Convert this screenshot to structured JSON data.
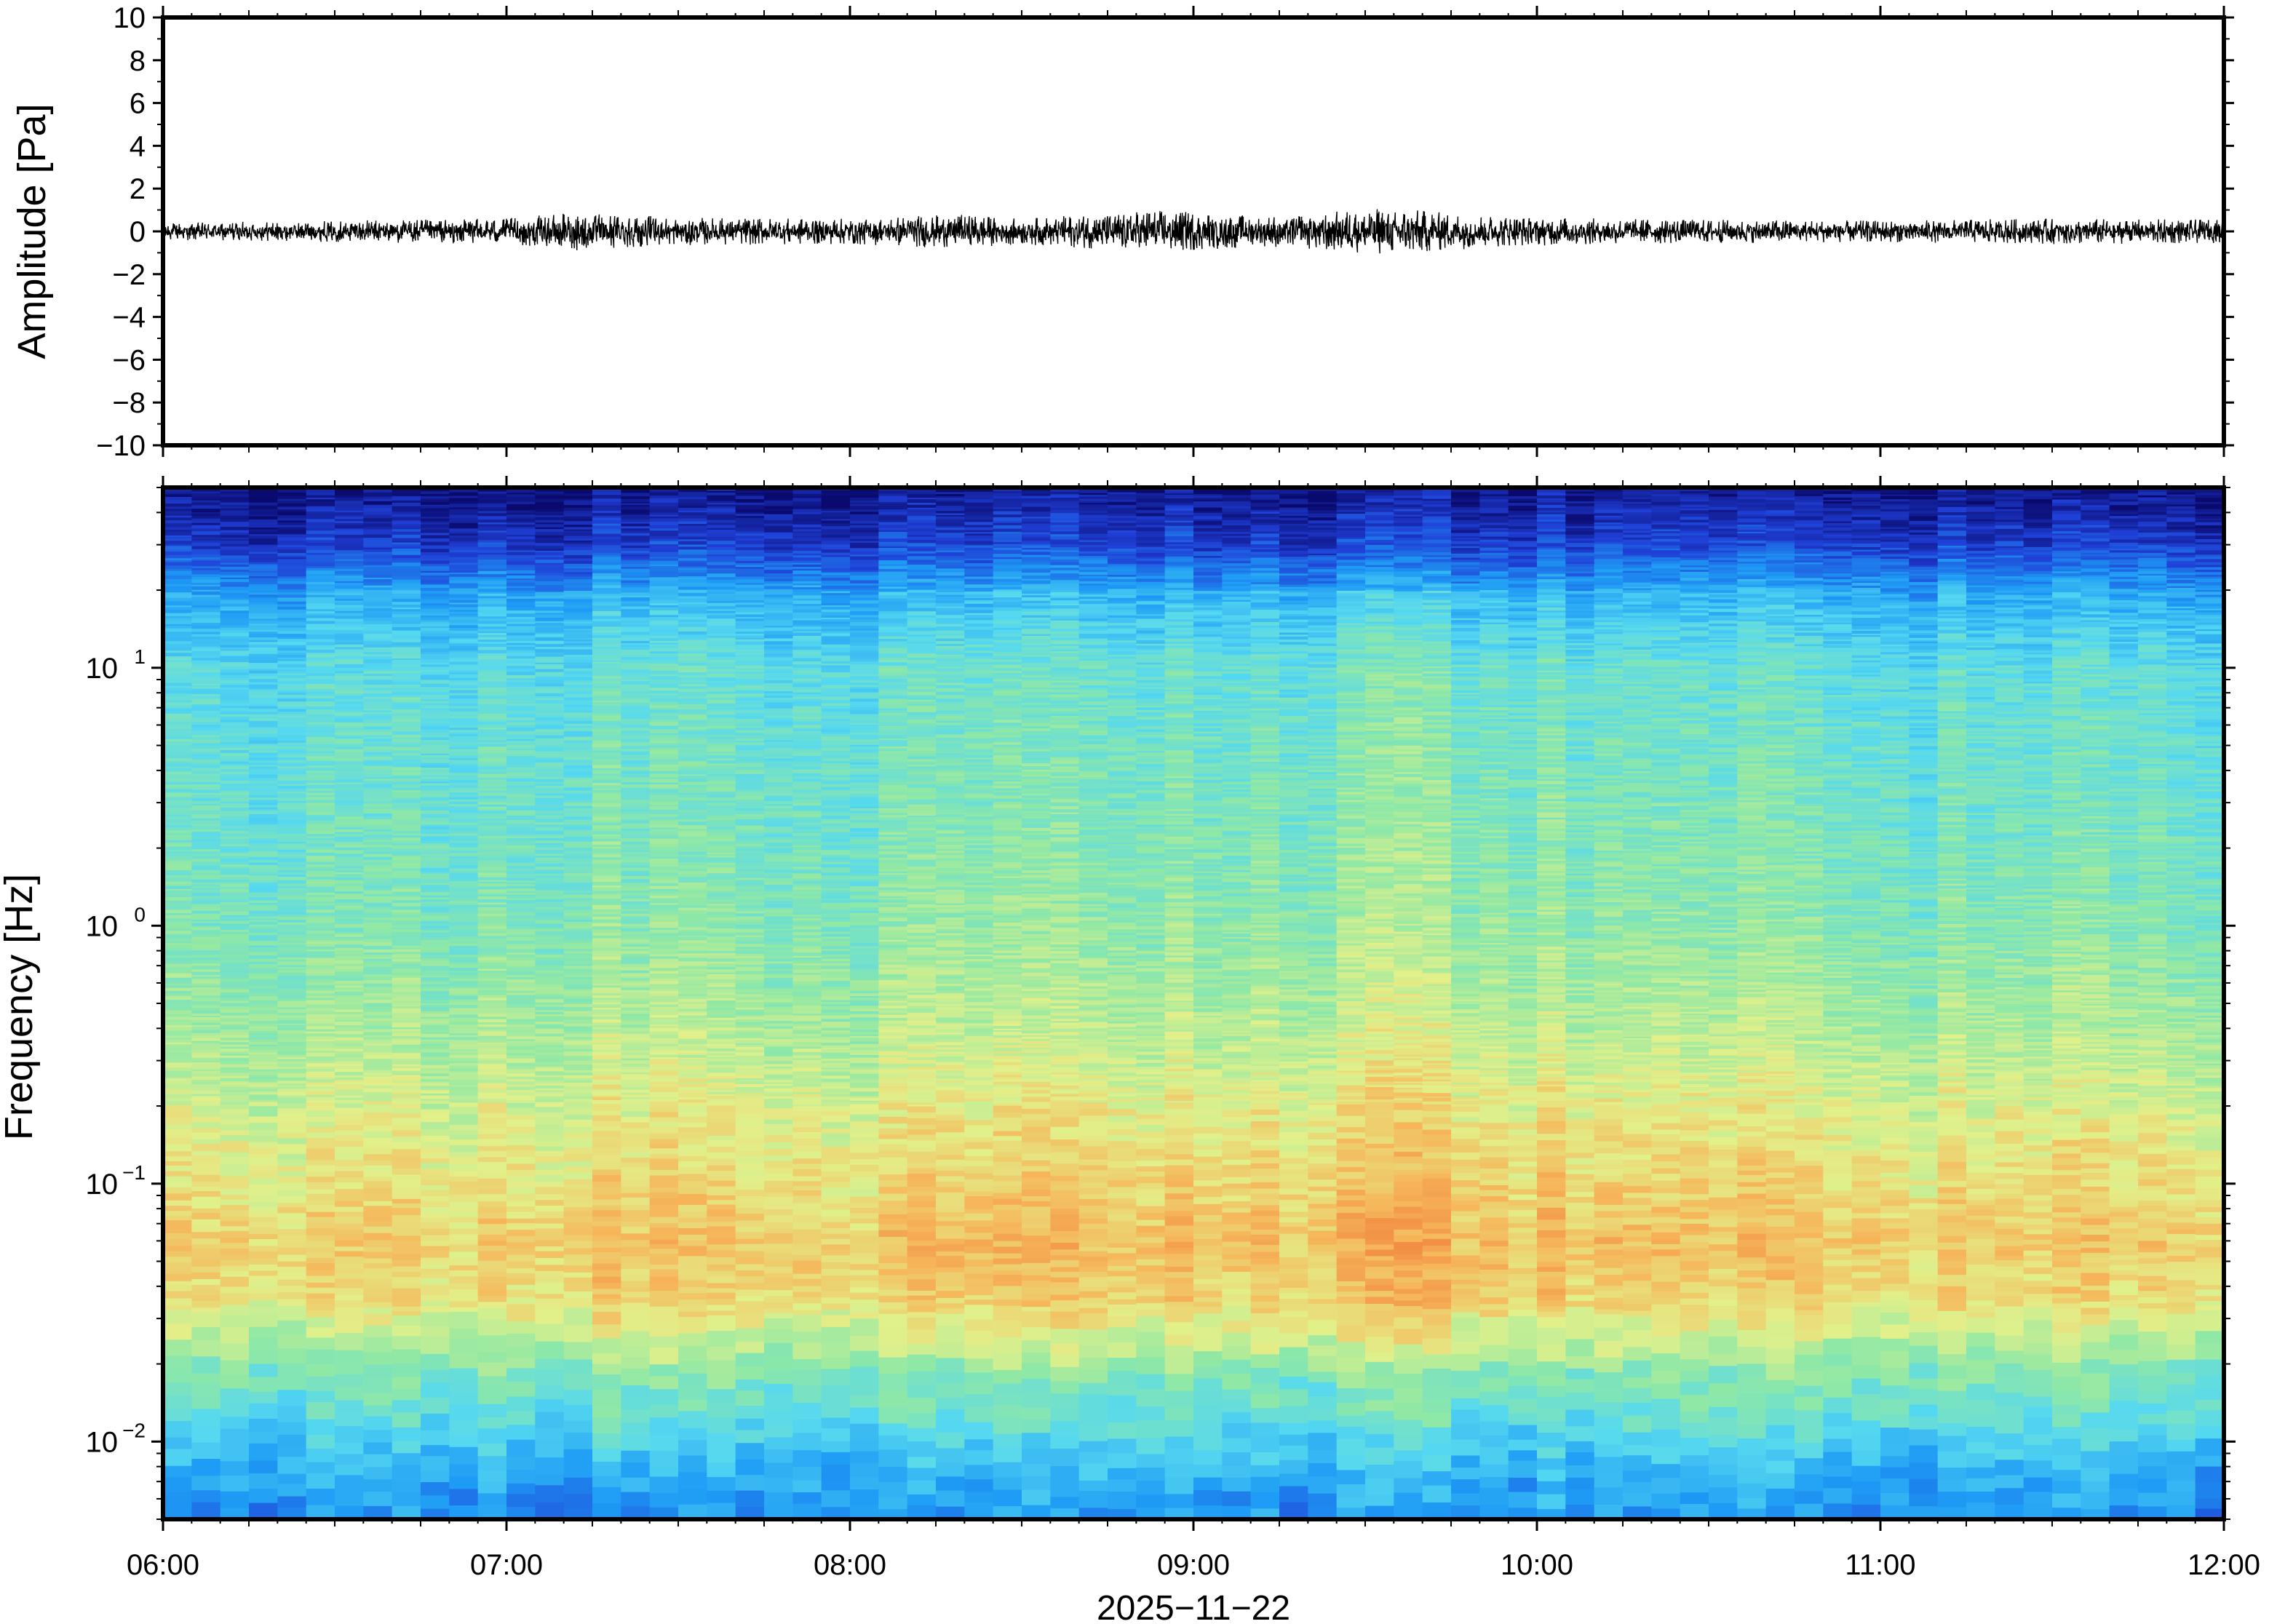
{
  "chart_data": [
    {
      "type": "line",
      "panel": "waveform",
      "ylabel": "Amplitude [Pa]",
      "ylim": [
        -10,
        10
      ],
      "yticks": [
        10,
        8,
        6,
        4,
        2,
        0,
        -2,
        -4,
        -6,
        -8,
        -10
      ],
      "ytick_labels": [
        "10",
        "8",
        "6",
        "4",
        "2",
        "0",
        "−2",
        "−4",
        "−6",
        "−8",
        "−10"
      ],
      "x_range": [
        "06:00",
        "12:00"
      ],
      "series": [
        {
          "color": "#000000",
          "envelope_t_hours": [
            6.0,
            6.5,
            7.0,
            7.2,
            7.5,
            8.0,
            8.3,
            8.5,
            8.9,
            9.2,
            9.55,
            9.65,
            9.9,
            10.2,
            10.5,
            11.0,
            11.5,
            12.0
          ],
          "envelope_amplitude_pa": [
            0.4,
            0.5,
            0.6,
            0.9,
            0.65,
            0.6,
            0.8,
            0.6,
            1.0,
            0.7,
            1.1,
            1.0,
            0.7,
            0.6,
            0.55,
            0.5,
            0.6,
            0.55
          ]
        }
      ],
      "grid": false
    },
    {
      "type": "heatmap",
      "panel": "spectrogram",
      "ylabel": "Frequency [Hz]",
      "yscale": "log",
      "ylim": [
        0.005,
        50
      ],
      "yticks": [
        0.01,
        0.1,
        1,
        10
      ],
      "ytick_labels": [
        {
          "base": "10",
          "exp": "−2"
        },
        {
          "base": "10",
          "exp": "−1"
        },
        {
          "base": "10",
          "exp": "0"
        },
        {
          "base": "10",
          "exp": "1"
        }
      ],
      "xlabel": "2025−11−22",
      "xticks": [
        "06:00",
        "07:00",
        "08:00",
        "09:00",
        "10:00",
        "11:00",
        "12:00"
      ],
      "colormap": [
        "#0a0a6e",
        "#1f3fd6",
        "#1e9bf5",
        "#55d8f0",
        "#8fe8a6",
        "#e2f08a",
        "#f6b65a",
        "#f07c3a"
      ],
      "profile_freq_hz": [
        0.005,
        0.008,
        0.012,
        0.02,
        0.035,
        0.06,
        0.1,
        0.2,
        0.4,
        1,
        2,
        5,
        10,
        20,
        30,
        50
      ],
      "profile_level": [
        0.27,
        0.34,
        0.45,
        0.56,
        0.74,
        0.79,
        0.74,
        0.68,
        0.6,
        0.53,
        0.5,
        0.47,
        0.44,
        0.3,
        0.13,
        0.02
      ],
      "activity_t_hours": [
        6.0,
        7.0,
        7.2,
        8.0,
        8.3,
        8.9,
        9.3,
        9.6,
        9.9,
        10.5,
        10.6,
        11.0,
        11.5,
        12.0
      ],
      "activity_boost": [
        0.0,
        0.02,
        0.04,
        0.02,
        0.05,
        0.03,
        0.06,
        0.09,
        0.06,
        0.02,
        0.04,
        0.01,
        0.02,
        0.03
      ],
      "grid": false
    }
  ]
}
